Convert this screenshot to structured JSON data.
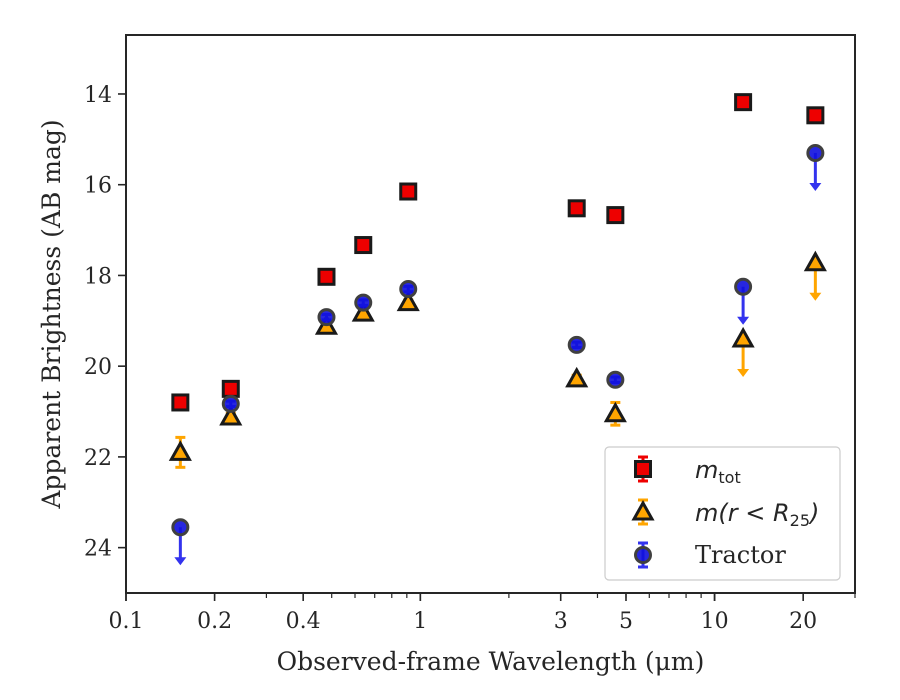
{
  "chart_data": {
    "type": "scatter",
    "title": "",
    "xlabel": "Observed-frame Wavelength (μm)",
    "ylabel": "Apparent Brightness (AB mag)",
    "x_scale": "log",
    "xlim": [
      0.1,
      30
    ],
    "ylim": [
      25,
      12.7
    ],
    "y_inverted": true,
    "x_ticks": [
      {
        "value": 0.1,
        "label": "0.1"
      },
      {
        "value": 0.2,
        "label": "0.2"
      },
      {
        "value": 0.4,
        "label": "0.4"
      },
      {
        "value": 1,
        "label": "1"
      },
      {
        "value": 3,
        "label": "3"
      },
      {
        "value": 5,
        "label": "5"
      },
      {
        "value": 10,
        "label": "10"
      },
      {
        "value": 20,
        "label": "20"
      }
    ],
    "y_ticks": [
      {
        "value": 14,
        "label": "14"
      },
      {
        "value": 16,
        "label": "16"
      },
      {
        "value": 18,
        "label": "18"
      },
      {
        "value": 20,
        "label": "20"
      },
      {
        "value": 22,
        "label": "22"
      },
      {
        "value": 24,
        "label": "24"
      }
    ],
    "grid": false,
    "legend_position": "bottom-right",
    "series": [
      {
        "name": "m_tot",
        "legend_main": "m",
        "legend_sub": "tot",
        "marker": "square",
        "face_color": "#ee0000",
        "edge_color": "#1a1a1a",
        "error_color": "#ee0000",
        "points": [
          {
            "x": 0.153,
            "y": 20.8,
            "err": 0.05
          },
          {
            "x": 0.227,
            "y": 20.5,
            "err": 0.05
          },
          {
            "x": 0.48,
            "y": 18.03,
            "err": 0.05
          },
          {
            "x": 0.64,
            "y": 17.33,
            "err": 0.05
          },
          {
            "x": 0.91,
            "y": 16.15,
            "err": 0.05
          },
          {
            "x": 3.4,
            "y": 16.52,
            "err": 0.05
          },
          {
            "x": 4.6,
            "y": 16.67,
            "err": 0.05
          },
          {
            "x": 12.5,
            "y": 14.18,
            "err": 0.05
          },
          {
            "x": 22,
            "y": 14.47,
            "err": 0.05
          }
        ]
      },
      {
        "name": "m(r < R25)",
        "legend_main": "m(r < R",
        "legend_sub": "25",
        "legend_tail": ")",
        "marker": "triangle",
        "face_color": "#ffa500",
        "edge_color": "#1a1a1a",
        "error_color": "#ffa500",
        "points": [
          {
            "x": 0.153,
            "y": 21.9,
            "err": 0.33
          },
          {
            "x": 0.227,
            "y": 21.12,
            "err": 0.08
          },
          {
            "x": 0.48,
            "y": 19.12,
            "err": 0.06
          },
          {
            "x": 0.64,
            "y": 18.83,
            "err": 0.06
          },
          {
            "x": 0.91,
            "y": 18.6,
            "err": 0.06
          },
          {
            "x": 3.4,
            "y": 20.28,
            "err": 0.08
          },
          {
            "x": 4.6,
            "y": 21.05,
            "err": 0.25
          },
          {
            "x": 12.5,
            "y": 19.4,
            "upper_limit": true
          },
          {
            "x": 22,
            "y": 17.72,
            "upper_limit": true
          }
        ]
      },
      {
        "name": "Tractor",
        "marker": "circle",
        "face_color": "#1010dd",
        "edge_color": "#404040",
        "error_color": "#3333ee",
        "points": [
          {
            "x": 0.153,
            "y": 23.55,
            "upper_limit": true
          },
          {
            "x": 0.227,
            "y": 20.83,
            "err": 0.06
          },
          {
            "x": 0.48,
            "y": 18.92,
            "err": 0.06
          },
          {
            "x": 0.64,
            "y": 18.6,
            "err": 0.06
          },
          {
            "x": 0.91,
            "y": 18.3,
            "err": 0.06
          },
          {
            "x": 3.4,
            "y": 19.53,
            "err": 0.06
          },
          {
            "x": 4.6,
            "y": 20.3,
            "err": 0.06
          },
          {
            "x": 12.5,
            "y": 18.25,
            "upper_limit": true
          },
          {
            "x": 22,
            "y": 15.3,
            "upper_limit": true
          }
        ]
      }
    ]
  }
}
